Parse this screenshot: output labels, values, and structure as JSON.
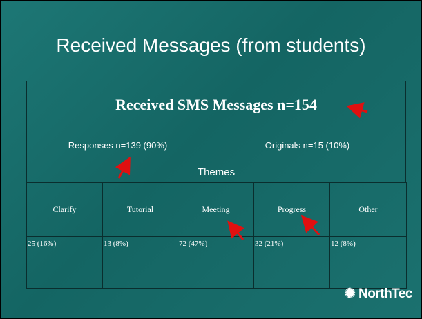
{
  "title": "Received Messages (from students)",
  "table": {
    "header": "Received SMS Messages n=154",
    "split": [
      "Responses n=139 (90%)",
      "Originals n=15 (10%)"
    ],
    "subheader": "Themes",
    "themes": [
      "Clarify",
      "Tutorial",
      "Meeting",
      "Progress",
      "Other"
    ],
    "counts": [
      "25 (16%)",
      "13 (8%)",
      "72 (47%)",
      "32 (21%)",
      "12 (8%)"
    ]
  },
  "logo": "NorthTec"
}
